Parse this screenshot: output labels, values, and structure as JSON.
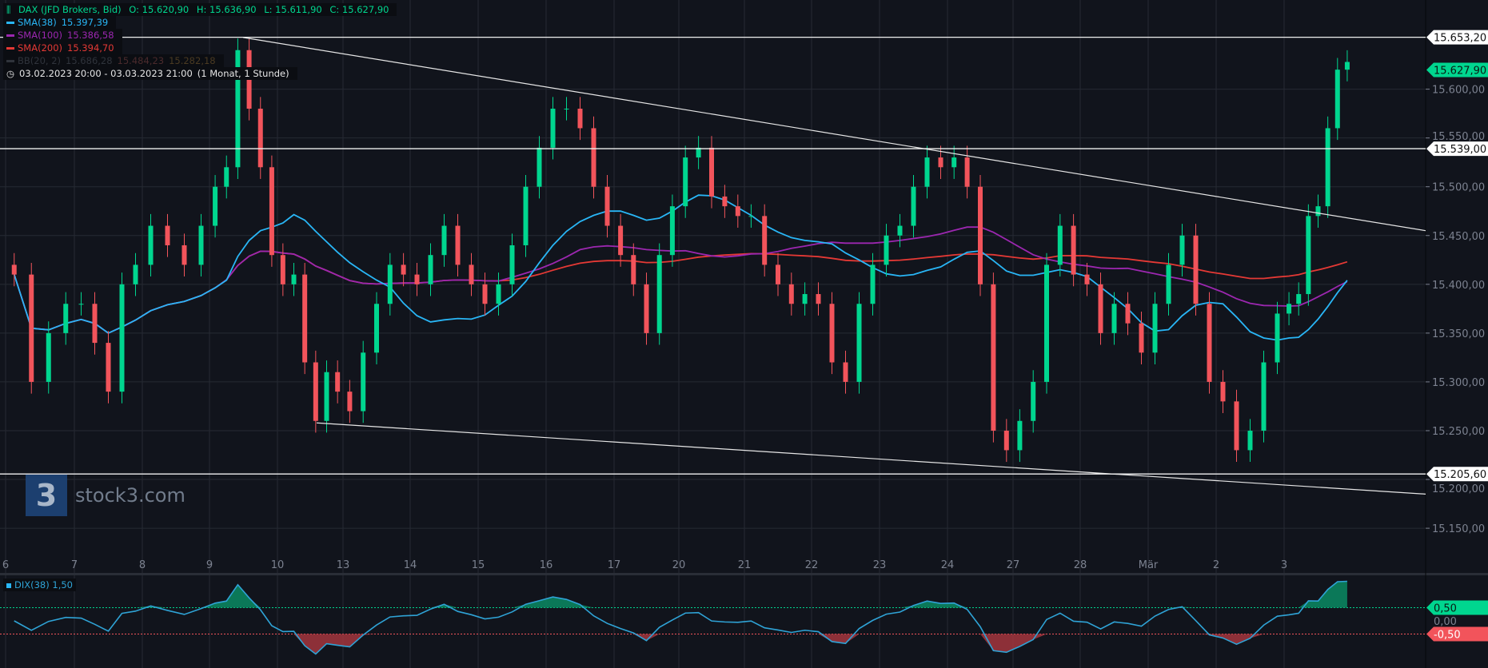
{
  "legend": {
    "symbol": "DAX (JFD Brokers, Bid)",
    "open": "O: 15.620,90",
    "high": "H: 15.636,90",
    "low": "L: 15.611,90",
    "close": "C: 15.627,90",
    "sma38_label": "SMA(38)",
    "sma38_value": "15.397,39",
    "sma100_label": "SMA(100)",
    "sma100_value": "15.386,58",
    "sma200_label": "SMA(200)",
    "sma200_value": "15.394,70",
    "bb_label": "BB(20, 2)",
    "bb_upper": "15.686,28",
    "bb_mid": "15.484,23",
    "bb_lower": "15.282,18",
    "range": "03.02.2023 20:00 - 03.03.2023 21:00",
    "period": "(1 Monat, 1 Stunde)",
    "clock_icon": "clock-icon"
  },
  "logo": {
    "mark": "3",
    "text": "stock3.com"
  },
  "dix": {
    "label": "DIX(38)",
    "value": "1,50",
    "upper_label": "0,50",
    "zero_label": "0,00",
    "lower_label": "-0,50"
  },
  "colors": {
    "up": "#00d68f",
    "down": "#f2545b",
    "sma38": "#29b6f6",
    "sma100": "#9c27b0",
    "sma200": "#e53935",
    "bb": "#2a2e36",
    "bg": "#11141c",
    "grid": "#262a33",
    "text": "#7c8290"
  },
  "chart_data": {
    "type": "candlestick",
    "title": "DAX (JFD Brokers, Bid)",
    "ylim": [
      15130,
      15680
    ],
    "y_ticks": [
      15150,
      15200,
      15250,
      15300,
      15350,
      15400,
      15450,
      15500,
      15550,
      15600
    ],
    "y_tick_labels": [
      "15.150,00",
      "15.200,00",
      "15.250,00",
      "15.300,00",
      "15.350,00",
      "15.400,00",
      "15.450,00",
      "15.500,00",
      "15.550,00",
      "15.600,00"
    ],
    "days": [
      {
        "label": "6",
        "close": [
          15410,
          15300,
          15350,
          15380
        ]
      },
      {
        "label": "7",
        "close": [
          15380,
          15340,
          15290,
          15400,
          15420
        ]
      },
      {
        "label": "8",
        "close": [
          15460,
          15440,
          15420,
          15460
        ]
      },
      {
        "label": "9",
        "close": [
          15500,
          15520,
          15640,
          15580,
          15520,
          15430
        ]
      },
      {
        "label": "10",
        "close": [
          15400,
          15410,
          15320,
          15260,
          15310,
          15290
        ]
      },
      {
        "label": "13",
        "close": [
          15270,
          15330,
          15380,
          15420,
          15410
        ]
      },
      {
        "label": "14",
        "close": [
          15400,
          15430,
          15460,
          15420,
          15400
        ]
      },
      {
        "label": "15",
        "close": [
          15380,
          15400,
          15440,
          15500,
          15540
        ]
      },
      {
        "label": "16",
        "close": [
          15580,
          15580,
          15560,
          15500,
          15460
        ]
      },
      {
        "label": "17",
        "close": [
          15430,
          15400,
          15350,
          15430,
          15480
        ]
      },
      {
        "label": "20",
        "close": [
          15530,
          15540,
          15490,
          15480,
          15470
        ]
      },
      {
        "label": "21",
        "close": [
          15470,
          15420,
          15400,
          15380,
          15390
        ]
      },
      {
        "label": "22",
        "close": [
          15380,
          15320,
          15300,
          15380,
          15420
        ]
      },
      {
        "label": "23",
        "close": [
          15450,
          15460,
          15500,
          15530,
          15520
        ]
      },
      {
        "label": "24",
        "close": [
          15530,
          15500,
          15400,
          15250,
          15230
        ]
      },
      {
        "label": "27",
        "close": [
          15260,
          15300,
          15420,
          15460,
          15410
        ]
      },
      {
        "label": "28",
        "close": [
          15400,
          15350,
          15380,
          15360,
          15330
        ]
      },
      {
        "label": "Mär",
        "close": [
          15380,
          15420,
          15450,
          15380,
          15300
        ]
      },
      {
        "label": "2",
        "close": [
          15280,
          15230,
          15250,
          15320,
          15370
        ]
      },
      {
        "label": "3",
        "close": [
          15380,
          15390,
          15470,
          15480,
          15560,
          15620,
          15627.9
        ]
      }
    ],
    "horizontal_levels": [
      {
        "value": 15653.2,
        "label": "15.653,20"
      },
      {
        "value": 15539.0,
        "label": "15.539,00"
      },
      {
        "value": 15205.6,
        "label": "15.205,60"
      }
    ],
    "last_price": {
      "value": 15627.9,
      "label": "15.627,90"
    },
    "trendlines": [
      {
        "from": {
          "day": "9",
          "price": 15653
        },
        "to": {
          "day": "end",
          "price": 15455
        }
      },
      {
        "from": {
          "day": "10",
          "price": 15258
        },
        "to": {
          "day": "end",
          "price": 15185
        }
      }
    ],
    "dix_levels": [
      0.5,
      0,
      -0.5
    ]
  }
}
